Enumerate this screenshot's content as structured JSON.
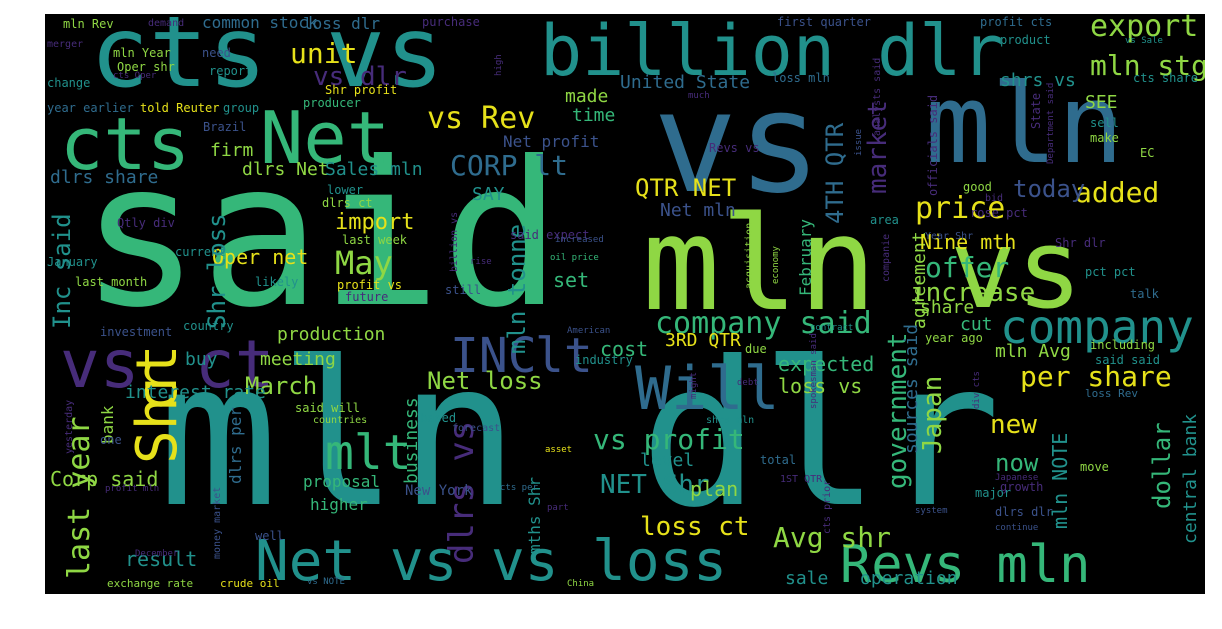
{
  "palette": {
    "yellow": "#e6e11a",
    "lime": "#8fd744",
    "green": "#35b779",
    "teal": "#21918c",
    "blue": "#2f6c8e",
    "indigo": "#3b528b",
    "purple": "#472c7a",
    "violet": "#440154",
    "background": "#000000"
  },
  "words": [
    "mln dlr",
    "said",
    "mln",
    "vs",
    "vs",
    "mln",
    "cts vs",
    "billion dlr",
    "cts",
    "Net",
    "vs",
    "ct",
    "Net vs vs loss",
    "Revs mln",
    "company",
    "Will",
    "INC",
    "lt",
    "Shr",
    "ct",
    "mlt",
    "company said",
    "price",
    "export",
    "mln stg",
    "unit",
    "vs dlr",
    "vs Rev",
    "CORP lt",
    "QTR NET",
    "4TH QTR",
    "added",
    "market",
    "today",
    "offer",
    "increase",
    "per share",
    "May",
    "Oper net",
    "import",
    "mln tonne",
    "Inc said",
    "Shr loss",
    "dlrs share",
    "dlrs Net",
    "Sales mln",
    "SAY",
    "made",
    "time",
    "firm",
    "Net profit",
    "United State",
    "shrs vs",
    "SEE",
    "mln Avg",
    "cut",
    "share",
    "government",
    "Japan",
    "agreement",
    "Nine mth",
    "Net mln",
    "February",
    "set",
    "3RD QTR",
    "cost",
    "expected",
    "loss vs",
    "sources said",
    "mln NOTE",
    "dollar",
    "central bank",
    "new",
    "now",
    "production",
    "meeting",
    "buy",
    "March",
    "interest rate",
    "last year",
    "Net loss",
    "vs profit",
    "NET Shr",
    "loss ct",
    "Avg shr",
    "plan",
    "dlrs vs",
    "Corp said",
    "bank",
    "result",
    "business",
    "level",
    "operation",
    "sale",
    "mths Shr",
    "dlrs per",
    "proposal",
    "higher",
    "New York",
    "loss Rev",
    "growth",
    "mln Rev",
    "demand",
    "common stock",
    "loss dlr",
    "purchase",
    "first quarter",
    "profit cts",
    "merger",
    "mln Year",
    "need",
    "product",
    "vs Sale",
    "Oper shr",
    "report",
    "cts Oper",
    "high",
    "change",
    "year earlier",
    "told Reuter",
    "group",
    "producer",
    "Shr profit",
    "loss mln",
    "cts share",
    "much",
    "Brazil",
    "Revs vs",
    "issue",
    "analysts said",
    "officials said",
    "State",
    "Department said",
    "sell",
    "make",
    "lower",
    "dlrs ct",
    "Qtly div",
    "last week",
    "said expect",
    "billion vs",
    "current",
    "January",
    "last month",
    "likely",
    "oil price",
    "rise",
    "increased",
    "still",
    "future",
    "profit vs",
    "acquisition",
    "companie",
    "spokesman said",
    "economy",
    "area",
    "Year Shr",
    "rose pct",
    "Shr dlr",
    "good",
    "bid",
    "EC",
    "pct pct",
    "talk",
    "investment",
    "country",
    "American",
    "contract",
    "year ago",
    "including",
    "said said",
    "due",
    "industry",
    "yesterday",
    "said will",
    "countries",
    "forecast",
    "based",
    "debt",
    "shrs mln",
    "one",
    "might",
    "div cts",
    "asset",
    "1ST QTR",
    "cts prior",
    "total",
    "move",
    "money market",
    "profit mln",
    "cts per",
    "part",
    "Japanese",
    "major",
    "system",
    "dlrs dlr",
    "continue",
    "well",
    "December",
    "exchange rate",
    "crude oil",
    "vs NOTE",
    "China"
  ]
}
